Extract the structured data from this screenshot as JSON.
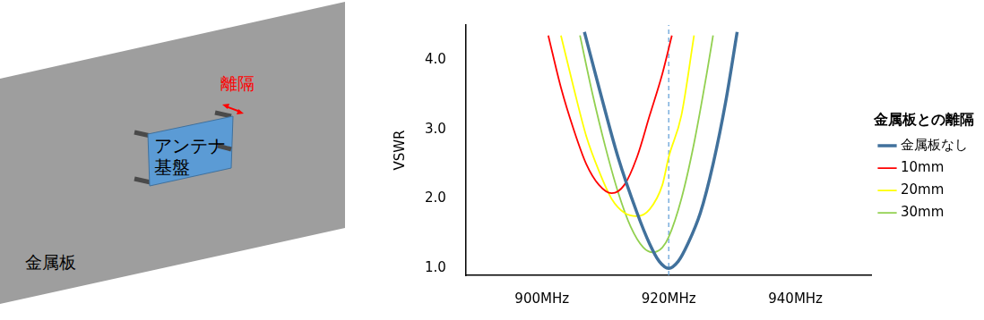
{
  "chart_data": {
    "type": "line",
    "y_label": "VSWR",
    "legend_title": "金属板との離隔",
    "legend": "right",
    "grid": false,
    "xlim": [
      888,
      952
    ],
    "xticks": [
      {
        "value": 900,
        "label": "900MHz"
      },
      {
        "value": 920,
        "label": "920MHz"
      },
      {
        "value": 940,
        "label": "940MHz"
      }
    ],
    "ylim": [
      0.9,
      4.5
    ],
    "yticks": [
      {
        "value": 1,
        "label": "1.0"
      },
      {
        "value": 2,
        "label": "2.0"
      },
      {
        "value": 3,
        "label": "3.0"
      },
      {
        "value": 4,
        "label": "4.0"
      }
    ],
    "series": [
      {
        "name": "金属板なし",
        "color": "#41719c",
        "x": [
          906.7,
          909,
          912,
          915,
          917,
          918.5,
          920,
          921.5,
          923,
          925,
          927,
          929,
          930.8
        ],
        "values": [
          4.4,
          3.6,
          2.6,
          1.8,
          1.35,
          1.1,
          1.0,
          1.1,
          1.35,
          1.8,
          2.5,
          3.4,
          4.4
        ]
      },
      {
        "name": "10mm",
        "color": "#ff0000",
        "x": [
          901,
          903,
          905,
          907,
          909,
          911,
          913,
          915,
          917,
          919,
          920.5
        ],
        "values": [
          4.35,
          3.6,
          3.0,
          2.5,
          2.2,
          2.08,
          2.2,
          2.6,
          3.2,
          3.8,
          4.35
        ]
      },
      {
        "name": "20mm",
        "color": "#ffff00",
        "x": [
          903,
          905,
          907,
          909,
          911,
          913,
          915,
          917,
          919,
          920,
          922,
          924
        ],
        "values": [
          4.35,
          3.6,
          2.9,
          2.4,
          2.0,
          1.8,
          1.75,
          1.85,
          2.2,
          2.6,
          3.2,
          4.35
        ]
      },
      {
        "name": "30mm",
        "color": "#92d050",
        "x": [
          906,
          908,
          910,
          912,
          914,
          916,
          917.5,
          919,
          920,
          922,
          924,
          926,
          927
        ],
        "values": [
          4.35,
          3.5,
          2.75,
          2.1,
          1.6,
          1.3,
          1.23,
          1.3,
          1.45,
          2.0,
          2.8,
          3.8,
          4.35
        ]
      }
    ],
    "reference_line": {
      "x": 920,
      "line_style": "dashed",
      "color": "#5b9bd5"
    }
  },
  "diagram": {
    "plate_label": "金属板",
    "board_label": [
      "アンテナ",
      "基盤"
    ],
    "gap_label": "離隔"
  }
}
